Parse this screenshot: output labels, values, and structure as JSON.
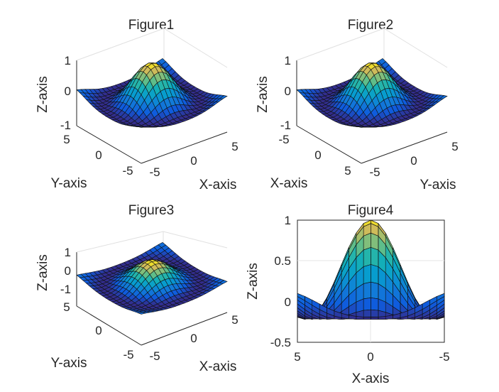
{
  "chart_data": [
    {
      "type": "surface",
      "title": "Figure1",
      "xlabel": "X-axis",
      "ylabel": "Y-axis",
      "zlabel": "Z-axis",
      "xlim": [
        -5,
        5
      ],
      "ylim": [
        -5,
        5
      ],
      "zlim": [
        -1,
        1
      ],
      "x_ticks": [
        "-5",
        "0",
        "5"
      ],
      "y_ticks": [
        "5",
        "0",
        "-5"
      ],
      "z_ticks": [
        "1",
        "0",
        "-1"
      ],
      "surface": "z = sin(r)/r, r = sqrt(x^2 + y^2), 21x21 grid over [-5,5]",
      "z_range": [
        -0.22,
        1.0
      ],
      "view": "3d",
      "colormap": "parula",
      "grid": true
    },
    {
      "type": "surface",
      "title": "Figure2",
      "xlabel": "X-axis",
      "ylabel": "Y-axis",
      "zlabel": "Z-axis",
      "xlim": [
        -5,
        5
      ],
      "ylim": [
        -5,
        5
      ],
      "zlim": [
        -1,
        1
      ],
      "x_ticks": [
        "5",
        "0",
        "-5"
      ],
      "y_ticks": [
        "-5",
        "0",
        "5"
      ],
      "z_ticks": [
        "1",
        "0",
        "-1"
      ],
      "surface": "z = sin(r)/r, r = sqrt(x^2 + y^2), 21x21 grid over [-5,5]",
      "z_range": [
        -0.22,
        1.0
      ],
      "view": "3d (axes swapped)",
      "colormap": "parula",
      "grid": true
    },
    {
      "type": "surface",
      "title": "Figure3",
      "xlabel": "X-axis",
      "ylabel": "Y-axis",
      "zlabel": "Z-axis",
      "xlim": [
        -5,
        5
      ],
      "ylim": [
        -5,
        5
      ],
      "zlim": [
        -1,
        1
      ],
      "x_ticks": [
        "-5",
        "0",
        "5"
      ],
      "y_ticks": [
        "5",
        "0",
        "-5"
      ],
      "z_ticks": [
        "1",
        "0",
        "-1"
      ],
      "surface": "z = sin(r)/r, r = sqrt(x^2 + y^2), 21x21 grid over [-5,5]",
      "z_range": [
        -0.22,
        1.0
      ],
      "view": "3d (high elevation)",
      "colormap": "parula",
      "grid": true
    },
    {
      "type": "surface",
      "title": "Figure4",
      "xlabel": "X-axis",
      "zlabel": "Z-axis",
      "xlim": [
        5,
        -5
      ],
      "zlim": [
        -0.5,
        1
      ],
      "x_ticks": [
        "5",
        "0",
        "-5"
      ],
      "z_ticks": [
        "1",
        "0.5",
        "0",
        "-0.5"
      ],
      "surface": "z = sin(r)/r, r = sqrt(x^2 + y^2), 21x21 grid over [-5,5]",
      "z_range": [
        -0.22,
        1.0
      ],
      "view": "side (x-z plane)",
      "colormap": "parula",
      "grid": true
    }
  ]
}
